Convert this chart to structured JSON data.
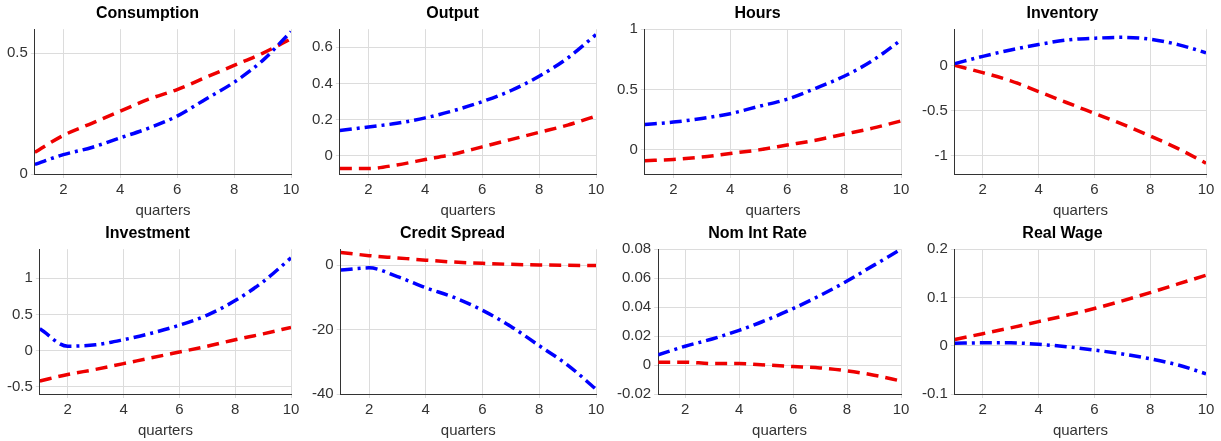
{
  "chart_data": [
    {
      "type": "line",
      "title": "Consumption",
      "xlabel": "quarters",
      "x": [
        1,
        2,
        3,
        4,
        5,
        6,
        7,
        8,
        9,
        10
      ],
      "xlim": [
        1,
        10
      ],
      "xticks": [
        2,
        4,
        6,
        8,
        10
      ],
      "ylim": [
        0,
        0.6
      ],
      "yticks": [
        0,
        0.5
      ],
      "grid": true,
      "legend": false,
      "marker": "none",
      "series": [
        {
          "color": "#0000ff",
          "line_style": "dashdot",
          "values": [
            0.04,
            0.08,
            0.11,
            0.15,
            0.19,
            0.24,
            0.31,
            0.38,
            0.47,
            0.59
          ]
        },
        {
          "color": "#ee0000",
          "line_style": "dashed",
          "values": [
            0.09,
            0.16,
            0.21,
            0.26,
            0.31,
            0.35,
            0.4,
            0.45,
            0.5,
            0.56
          ]
        }
      ]
    },
    {
      "type": "line",
      "title": "Output",
      "xlabel": "quarters",
      "x": [
        1,
        2,
        3,
        4,
        5,
        6,
        7,
        8,
        9,
        10
      ],
      "xlim": [
        1,
        10
      ],
      "xticks": [
        2,
        4,
        6,
        8,
        10
      ],
      "ylim": [
        -0.1,
        0.7
      ],
      "yticks": [
        0,
        0.2,
        0.4,
        0.6
      ],
      "grid": true,
      "legend": false,
      "marker": "none",
      "series": [
        {
          "color": "#0000ff",
          "line_style": "dashdot",
          "values": [
            0.14,
            0.16,
            0.18,
            0.21,
            0.25,
            0.3,
            0.36,
            0.44,
            0.54,
            0.67
          ]
        },
        {
          "color": "#ee0000",
          "line_style": "dashed",
          "values": [
            -0.07,
            -0.07,
            -0.05,
            -0.02,
            0.01,
            0.05,
            0.09,
            0.13,
            0.17,
            0.22
          ]
        }
      ]
    },
    {
      "type": "line",
      "title": "Hours",
      "xlabel": "quarters",
      "x": [
        1,
        2,
        3,
        4,
        5,
        6,
        7,
        8,
        9,
        10
      ],
      "xlim": [
        1,
        10
      ],
      "xticks": [
        2,
        4,
        6,
        8,
        10
      ],
      "ylim": [
        -0.2,
        1
      ],
      "yticks": [
        0,
        0.5,
        1
      ],
      "grid": true,
      "legend": false,
      "marker": "none",
      "series": [
        {
          "color": "#0000ff",
          "line_style": "dashdot",
          "values": [
            0.21,
            0.23,
            0.26,
            0.3,
            0.36,
            0.42,
            0.51,
            0.61,
            0.74,
            0.91
          ]
        },
        {
          "color": "#ee0000",
          "line_style": "dashed",
          "values": [
            -0.09,
            -0.08,
            -0.06,
            -0.03,
            0.0,
            0.04,
            0.08,
            0.13,
            0.18,
            0.24
          ]
        }
      ]
    },
    {
      "type": "line",
      "title": "Inventory",
      "xlabel": "quarters",
      "x": [
        1,
        2,
        3,
        4,
        5,
        6,
        7,
        8,
        9,
        10
      ],
      "xlim": [
        1,
        10
      ],
      "xticks": [
        2,
        4,
        6,
        8,
        10
      ],
      "ylim": [
        -1.2,
        0.4
      ],
      "yticks": [
        -1,
        -0.5,
        0
      ],
      "grid": true,
      "legend": false,
      "marker": "none",
      "series": [
        {
          "color": "#0000ff",
          "line_style": "dashdot",
          "values": [
            0.02,
            0.1,
            0.17,
            0.23,
            0.28,
            0.3,
            0.31,
            0.29,
            0.23,
            0.14
          ]
        },
        {
          "color": "#ee0000",
          "line_style": "dashed",
          "values": [
            0,
            -0.08,
            -0.17,
            -0.29,
            -0.41,
            -0.53,
            -0.65,
            -0.78,
            -0.92,
            -1.08
          ]
        }
      ]
    },
    {
      "type": "line",
      "title": "Investment",
      "xlabel": "quarters",
      "x": [
        1,
        2,
        3,
        4,
        5,
        6,
        7,
        8,
        9,
        10
      ],
      "xlim": [
        1,
        10
      ],
      "xticks": [
        2,
        4,
        6,
        8,
        10
      ],
      "ylim": [
        -0.6,
        1.4
      ],
      "yticks": [
        -0.5,
        0,
        0.5,
        1
      ],
      "grid": true,
      "legend": false,
      "marker": "none",
      "series": [
        {
          "color": "#0000ff",
          "line_style": "dashdot",
          "values": [
            0.3,
            0.06,
            0.08,
            0.15,
            0.24,
            0.35,
            0.49,
            0.69,
            0.95,
            1.28
          ]
        },
        {
          "color": "#ee0000",
          "line_style": "dashed",
          "values": [
            -0.42,
            -0.33,
            -0.26,
            -0.18,
            -0.1,
            -0.02,
            0.06,
            0.15,
            0.23,
            0.32
          ]
        }
      ]
    },
    {
      "type": "line",
      "title": "Credit Spread",
      "xlabel": "quarters",
      "x": [
        1,
        2,
        3,
        4,
        5,
        6,
        7,
        8,
        9,
        10
      ],
      "xlim": [
        1,
        10
      ],
      "xticks": [
        2,
        4,
        6,
        8,
        10
      ],
      "ylim": [
        -40,
        5
      ],
      "yticks": [
        -40,
        -20,
        0
      ],
      "grid": true,
      "legend": false,
      "marker": "none",
      "series": [
        {
          "color": "#0000ff",
          "line_style": "dashdot",
          "values": [
            -1.5,
            -0.8,
            -3.5,
            -7,
            -10,
            -14,
            -19,
            -25,
            -31,
            -38.5
          ]
        },
        {
          "color": "#ee0000",
          "line_style": "dashed",
          "values": [
            4,
            3,
            2.3,
            1.6,
            1,
            0.6,
            0.3,
            0.1,
            0,
            -0.1
          ]
        }
      ]
    },
    {
      "type": "line",
      "title": "Nom Int Rate",
      "xlabel": "quarters",
      "x": [
        1,
        2,
        3,
        4,
        5,
        6,
        7,
        8,
        9,
        10
      ],
      "xlim": [
        1,
        10
      ],
      "xticks": [
        2,
        4,
        6,
        8,
        10
      ],
      "ylim": [
        -0.02,
        0.08
      ],
      "yticks": [
        -0.02,
        0,
        0.02,
        0.04,
        0.06,
        0.08
      ],
      "grid": true,
      "legend": false,
      "marker": "none",
      "series": [
        {
          "color": "#0000ff",
          "line_style": "dashdot",
          "values": [
            0.007,
            0.013,
            0.018,
            0.024,
            0.031,
            0.039,
            0.048,
            0.058,
            0.069,
            0.08
          ]
        },
        {
          "color": "#ee0000",
          "line_style": "dashed",
          "values": [
            0.002,
            0.002,
            0.001,
            0.001,
            0,
            -0.001,
            -0.002,
            -0.004,
            -0.007,
            -0.011
          ]
        }
      ]
    },
    {
      "type": "line",
      "title": "Real Wage",
      "xlabel": "quarters",
      "x": [
        1,
        2,
        3,
        4,
        5,
        6,
        7,
        8,
        9,
        10
      ],
      "xlim": [
        1,
        10
      ],
      "xticks": [
        2,
        4,
        6,
        8,
        10
      ],
      "ylim": [
        -0.1,
        0.2
      ],
      "yticks": [
        -0.1,
        0,
        0.1,
        0.2
      ],
      "grid": true,
      "legend": false,
      "marker": "none",
      "series": [
        {
          "color": "#0000ff",
          "line_style": "dashdot",
          "values": [
            0.005,
            0.006,
            0.006,
            0.003,
            -0.002,
            -0.009,
            -0.017,
            -0.027,
            -0.04,
            -0.058
          ]
        },
        {
          "color": "#ee0000",
          "line_style": "dashed",
          "values": [
            0.013,
            0.025,
            0.037,
            0.05,
            0.063,
            0.077,
            0.093,
            0.11,
            0.128,
            0.146
          ]
        }
      ]
    }
  ]
}
